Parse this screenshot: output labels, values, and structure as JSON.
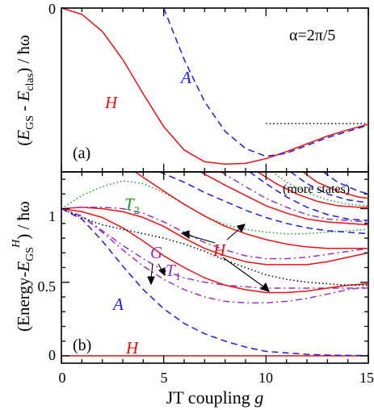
{
  "chart_data": [
    {
      "type": "line",
      "panel_label": "(a)",
      "annotation": "α=2π/5",
      "ylabel": "(E_GS - E_clas) / ħω",
      "xlim": [
        0,
        15
      ],
      "ylim": [
        -1.05,
        0
      ],
      "yticks": [
        {
          "value": 0,
          "label": "0"
        }
      ],
      "grid": false,
      "series": [
        {
          "name": "H",
          "color": "#ee1111",
          "style": "solid",
          "x": [
            0,
            1,
            2,
            3,
            4,
            5,
            6,
            7,
            8,
            9,
            10,
            11,
            12,
            13,
            14,
            15
          ],
          "y": [
            0,
            -0.04,
            -0.15,
            -0.33,
            -0.55,
            -0.76,
            -0.91,
            -0.985,
            -1.0,
            -0.995,
            -0.965,
            -0.92,
            -0.87,
            -0.82,
            -0.78,
            -0.745
          ]
        },
        {
          "name": "A",
          "color": "#1a1aee",
          "style": "dashed",
          "x": [
            5,
            6,
            7,
            8,
            9,
            10,
            11,
            12,
            13,
            14,
            15
          ],
          "y": [
            0,
            -0.33,
            -0.6,
            -0.79,
            -0.9,
            -0.95,
            -0.93,
            -0.88,
            -0.83,
            -0.79,
            -0.75
          ]
        },
        {
          "name": "",
          "color": "#000000",
          "style": "dotted",
          "x": [
            10,
            15
          ],
          "y": [
            -0.74,
            -0.74
          ]
        }
      ]
    },
    {
      "type": "line",
      "panel_label": "(b)",
      "ylabel": "(Energy-E_GS^H) / ħω",
      "xlabel": "JT coupling g",
      "xlim": [
        0,
        15
      ],
      "ylim": [
        -0.05,
        1.25
      ],
      "xticks": [
        0,
        5,
        10,
        15
      ],
      "yticks": [
        {
          "value": 0,
          "label": "0"
        },
        {
          "value": 0.5,
          "label": "0.5"
        },
        {
          "value": 1,
          "label": "1"
        }
      ],
      "grid": false,
      "labels": [
        "H",
        "T2",
        "G",
        "T1",
        "A",
        "H",
        "(more states)"
      ],
      "series": [
        {
          "name": "H",
          "color": "#ee1111",
          "style": "solid",
          "x": [
            0,
            15
          ],
          "y": [
            0,
            0
          ]
        },
        {
          "name": "A",
          "color": "#1a1aee",
          "style": "dashed",
          "x": [
            0,
            1,
            2,
            3,
            4,
            5,
            6,
            7,
            8,
            9,
            10,
            11,
            12,
            13,
            14,
            15
          ],
          "y": [
            1,
            0.93,
            0.78,
            0.61,
            0.45,
            0.32,
            0.22,
            0.15,
            0.1,
            0.06,
            0.03,
            0.02,
            0.01,
            0.005,
            0.003,
            0.002
          ]
        },
        {
          "name": "G",
          "color": "#9b30c8",
          "style": "dashdot",
          "x": [
            0,
            1,
            2,
            3,
            4,
            5,
            6,
            7,
            8,
            9,
            10,
            11,
            12,
            13,
            14,
            15
          ],
          "y": [
            1,
            0.95,
            0.84,
            0.72,
            0.61,
            0.52,
            0.45,
            0.4,
            0.37,
            0.36,
            0.36,
            0.37,
            0.39,
            0.42,
            0.45,
            0.47
          ]
        },
        {
          "name": "G",
          "color": "#9b30c8",
          "style": "dashdot",
          "x": [
            0,
            1,
            2,
            3,
            4,
            5,
            6,
            7,
            8,
            9,
            10,
            11,
            12,
            13,
            14,
            15
          ],
          "y": [
            1,
            0.95,
            0.85,
            0.75,
            0.66,
            0.58,
            0.53,
            0.5,
            0.48,
            0.47,
            0.46,
            0.46,
            0.46,
            0.46,
            0.46,
            0.46
          ]
        },
        {
          "name": "H",
          "color": "#ee1111",
          "style": "solid",
          "x": [
            0,
            1,
            2,
            3,
            4,
            5,
            6,
            7,
            8,
            9,
            10,
            11,
            12,
            13,
            14,
            15
          ],
          "y": [
            1,
            0.98,
            0.94,
            0.87,
            0.78,
            0.68,
            0.6,
            0.53,
            0.48,
            0.45,
            0.43,
            0.43,
            0.44,
            0.46,
            0.48,
            0.49
          ]
        },
        {
          "name": "T1",
          "color": "#000000",
          "style": "dotted",
          "x": [
            0,
            1,
            2,
            3,
            4,
            5,
            6,
            7,
            8,
            9,
            10,
            11,
            12,
            13,
            14,
            15
          ],
          "y": [
            1,
            0.94,
            0.89,
            0.86,
            0.83,
            0.8,
            0.76,
            0.71,
            0.65,
            0.6,
            0.55,
            0.52,
            0.5,
            0.49,
            0.48,
            0.48
          ]
        },
        {
          "name": "H",
          "color": "#ee1111",
          "style": "solid",
          "x": [
            0,
            1,
            2,
            3,
            4,
            5,
            6,
            7,
            8,
            9,
            10,
            11,
            12,
            13,
            14,
            15
          ],
          "y": [
            1,
            1.01,
            1.0,
            0.98,
            0.94,
            0.88,
            0.8,
            0.73,
            0.68,
            0.64,
            0.62,
            0.62,
            0.62,
            0.64,
            0.67,
            0.7
          ]
        },
        {
          "name": "T1",
          "color": "#9b30c8",
          "style": "dashdot",
          "x": [
            0,
            1,
            2,
            3,
            4,
            5,
            6,
            7,
            8,
            9,
            10,
            11,
            12,
            13,
            14,
            15
          ],
          "y": [
            1,
            1.01,
            1.01,
            1.0,
            0.97,
            0.91,
            0.84,
            0.77,
            0.72,
            0.68,
            0.66,
            0.66,
            0.67,
            0.69,
            0.71,
            0.73
          ]
        },
        {
          "name": "T2",
          "color": "#1a9e1a",
          "style": "dotted",
          "x": [
            0,
            1,
            2,
            3,
            4,
            5,
            6,
            7,
            8,
            9,
            10,
            11,
            12,
            13,
            14,
            15
          ],
          "y": [
            1,
            1.09,
            1.15,
            1.19,
            1.17,
            1.11,
            1.03,
            0.95,
            0.89,
            0.86,
            0.84,
            0.83,
            0.83,
            0.84,
            0.85,
            0.86
          ]
        },
        {
          "name": "H",
          "color": "#ee1111",
          "style": "solid",
          "x": [
            3.6,
            5,
            6,
            7,
            8,
            9,
            10,
            11,
            12,
            13,
            14,
            15
          ],
          "y": [
            1.25,
            1.12,
            1.03,
            0.95,
            0.88,
            0.83,
            0.79,
            0.76,
            0.74,
            0.73,
            0.73,
            0.73
          ]
        },
        {
          "name": "A",
          "color": "#1a1aee",
          "style": "dashed",
          "x": [
            4.8,
            6,
            7,
            8,
            9,
            10,
            11,
            12,
            13,
            14,
            15
          ],
          "y": [
            1.25,
            1.18,
            1.11,
            1.05,
            0.99,
            0.94,
            0.9,
            0.87,
            0.85,
            0.84,
            0.83
          ]
        },
        {
          "name": "H",
          "color": "#ee1111",
          "style": "solid",
          "x": [
            6.8,
            8,
            9,
            10,
            11,
            12,
            13,
            14,
            15
          ],
          "y": [
            1.25,
            1.16,
            1.09,
            1.02,
            0.97,
            0.93,
            0.91,
            0.9,
            0.89
          ]
        },
        {
          "name": "T1",
          "color": "#9b30c8",
          "style": "dashdot",
          "x": [
            7.8,
            9,
            10,
            11,
            12,
            13,
            14,
            15
          ],
          "y": [
            1.25,
            1.15,
            1.07,
            1.01,
            0.96,
            0.93,
            0.92,
            0.91
          ]
        },
        {
          "name": "A",
          "color": "#1a1aee",
          "style": "dashed",
          "x": [
            9.2,
            10,
            11,
            12,
            13,
            14,
            15
          ],
          "y": [
            1.25,
            1.17,
            1.08,
            1.01,
            0.96,
            0.93,
            0.92
          ]
        },
        {
          "name": "H",
          "color": "#ee1111",
          "style": "solid",
          "x": [
            9.6,
            10.5,
            11.5,
            12.5,
            13.5,
            14.5,
            15
          ],
          "y": [
            1.25,
            1.17,
            1.1,
            1.05,
            1.02,
            1.01,
            1.01
          ]
        },
        {
          "name": "T2",
          "color": "#1a9e1a",
          "style": "dotted",
          "x": [
            10.3,
            11,
            12,
            13,
            14,
            15
          ],
          "y": [
            1.25,
            1.18,
            1.11,
            1.06,
            1.03,
            1.02
          ]
        },
        {
          "name": "A",
          "color": "#1a1aee",
          "style": "dashed",
          "x": [
            11.2,
            12,
            13,
            14,
            15
          ],
          "y": [
            1.25,
            1.17,
            1.1,
            1.06,
            1.04
          ]
        },
        {
          "name": "H",
          "color": "#ee1111",
          "style": "solid",
          "x": [
            11.8,
            12.5,
            13.5,
            14.5,
            15
          ],
          "y": [
            1.25,
            1.18,
            1.12,
            1.08,
            1.07
          ]
        },
        {
          "name": "A",
          "color": "#1a1aee",
          "style": "dashed",
          "x": [
            12.8,
            13.5,
            14.5,
            15
          ],
          "y": [
            1.25,
            1.18,
            1.12,
            1.1
          ]
        }
      ]
    }
  ],
  "xaxis_label_parts": {
    "main": "JT coupling ",
    "var": "g"
  },
  "panel_a_labels": {
    "H": "H",
    "A": "A",
    "alpha": "α=2π/5",
    "panel": "(a)"
  },
  "panel_b_labels": {
    "T2": "T",
    "T2_sub": "2",
    "G": "G",
    "T1": "T",
    "T1_sub": "1",
    "H_mid": "H",
    "A": "A",
    "H_low": "H",
    "more": "(more states)",
    "panel": "(b)"
  },
  "ylabel_a": {
    "p1": "(",
    "E1": "E",
    "GS": "GS",
    "p2": " - ",
    "E2": "E",
    "clas": "clas",
    "p3": ") / ħω"
  },
  "ylabel_b": {
    "p1": "(Energy-",
    "E": "E",
    "GS": "GS",
    "H": "H",
    "p2": ") / ħω"
  },
  "xticks": [
    "0",
    "5",
    "10",
    "15"
  ],
  "yticks_b": [
    "0",
    "0.5",
    "1"
  ],
  "ytick_a": "0"
}
